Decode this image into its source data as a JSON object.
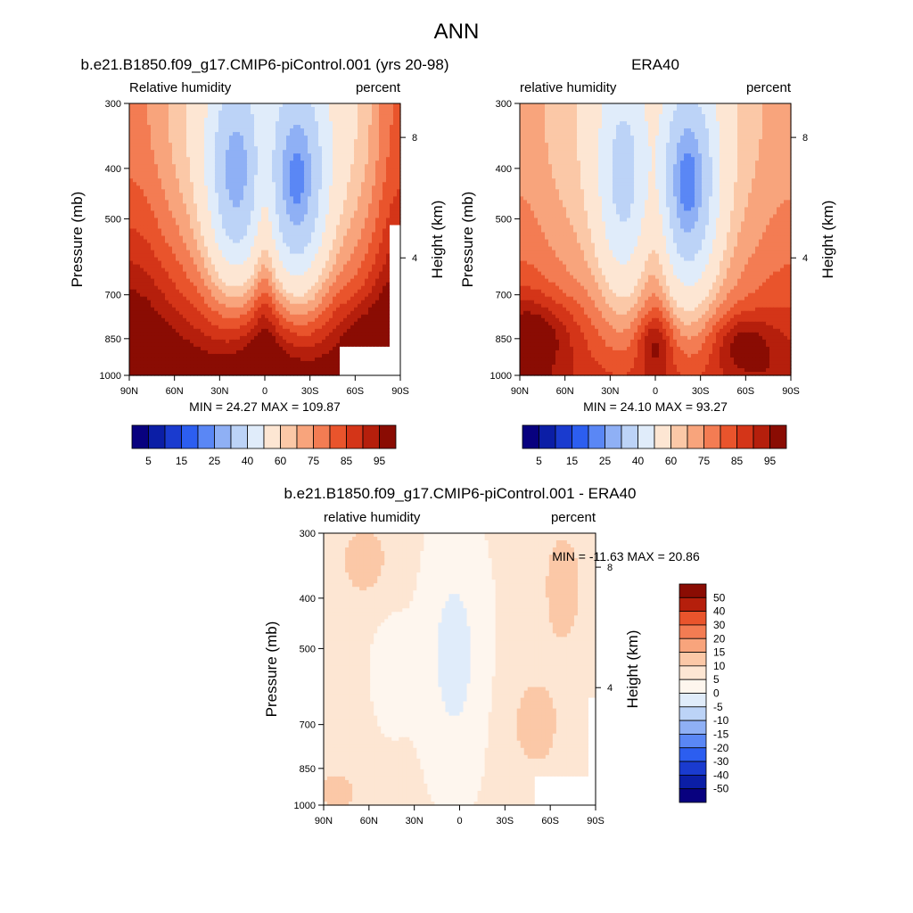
{
  "figure_title": "ANN",
  "chart_data": [
    {
      "type": "heatmap",
      "title": "b.e21.B1850.f09_g17.CMIP6-piControl.001 (yrs 20-98)",
      "left_string": "Relative humidity",
      "right_string": "percent",
      "ylabel": "Pressure (mb)",
      "ylabel_right": "Height (km)",
      "x_ticks": [
        "90N",
        "60N",
        "30N",
        "0",
        "30S",
        "60S",
        "90S"
      ],
      "y_ticks": [
        "300",
        "400",
        "500",
        "700",
        "850",
        "1000"
      ],
      "y2_ticks": [
        "8",
        "4"
      ],
      "ylim": [
        1000,
        300
      ],
      "y_scale": "log",
      "xlim": [
        90,
        -90
      ],
      "stats": "MIN =  24.27  MAX = 109.87",
      "colorbar": {
        "orientation": "horizontal",
        "labels": [
          "5",
          "15",
          "25",
          "40",
          "60",
          "75",
          "85",
          "95"
        ],
        "colors": [
          "#08017f",
          "#0b1ea6",
          "#1a3bcf",
          "#2c5ef0",
          "#5a87f5",
          "#8fb0f5",
          "#bcd3f7",
          "#e0ecfa",
          "#fde6d3",
          "#fbc8a7",
          "#f8a47c",
          "#f37c53",
          "#e9542c",
          "#d43518",
          "#b51f0c",
          "#8a0c03"
        ]
      },
      "contour_levels": [
        5,
        10,
        15,
        20,
        25,
        30,
        40,
        50,
        60,
        65,
        70,
        75,
        80,
        85,
        90,
        95
      ],
      "fill_colors": [
        "#08017f",
        "#0b1ea6",
        "#1a3bcf",
        "#2c5ef0",
        "#5a87f5",
        "#8fb0f5",
        "#bcd3f7",
        "#e0ecfa",
        "#fde6d3",
        "#fbc8a7",
        "#f8a47c",
        "#f37c53",
        "#e9542c",
        "#d43518",
        "#b51f0c",
        "#8a0c03"
      ]
    },
    {
      "type": "heatmap",
      "title": "ERA40",
      "left_string": "relative humidity",
      "right_string": "percent",
      "ylabel": "Pressure (mb)",
      "ylabel_right": "Height (km)",
      "x_ticks": [
        "90N",
        "60N",
        "30N",
        "0",
        "30S",
        "60S",
        "90S"
      ],
      "y_ticks": [
        "300",
        "400",
        "500",
        "700",
        "850",
        "1000"
      ],
      "y2_ticks": [
        "8",
        "4"
      ],
      "ylim": [
        1000,
        300
      ],
      "y_scale": "log",
      "xlim": [
        90,
        -90
      ],
      "stats": "MIN =  24.10  MAX =  93.27",
      "colorbar": {
        "orientation": "horizontal",
        "labels": [
          "5",
          "15",
          "25",
          "40",
          "60",
          "75",
          "85",
          "95"
        ],
        "colors": [
          "#08017f",
          "#0b1ea6",
          "#1a3bcf",
          "#2c5ef0",
          "#5a87f5",
          "#8fb0f5",
          "#bcd3f7",
          "#e0ecfa",
          "#fde6d3",
          "#fbc8a7",
          "#f8a47c",
          "#f37c53",
          "#e9542c",
          "#d43518",
          "#b51f0c",
          "#8a0c03"
        ]
      },
      "contour_levels": [
        5,
        10,
        15,
        20,
        25,
        30,
        40,
        50,
        60,
        65,
        70,
        75,
        80,
        85,
        90,
        95
      ],
      "fill_colors": [
        "#08017f",
        "#0b1ea6",
        "#1a3bcf",
        "#2c5ef0",
        "#5a87f5",
        "#8fb0f5",
        "#bcd3f7",
        "#e0ecfa",
        "#fde6d3",
        "#fbc8a7",
        "#f8a47c",
        "#f37c53",
        "#e9542c",
        "#d43518",
        "#b51f0c",
        "#8a0c03"
      ]
    },
    {
      "type": "heatmap",
      "title": "b.e21.B1850.f09_g17.CMIP6-piControl.001 - ERA40",
      "left_string": "relative humidity",
      "right_string": "percent",
      "ylabel": "Pressure (mb)",
      "ylabel_right": "Height (km)",
      "x_ticks": [
        "90N",
        "60N",
        "30N",
        "0",
        "30S",
        "60S",
        "90S"
      ],
      "y_ticks": [
        "300",
        "400",
        "500",
        "700",
        "850",
        "1000"
      ],
      "y2_ticks": [
        "8",
        "4"
      ],
      "ylim": [
        1000,
        300
      ],
      "y_scale": "log",
      "xlim": [
        90,
        -90
      ],
      "stats": "MIN = -11.63  MAX =  20.86",
      "colorbar": {
        "orientation": "vertical",
        "labels": [
          "50",
          "40",
          "30",
          "20",
          "15",
          "10",
          "5",
          "0",
          "-5",
          "-10",
          "-15",
          "-20",
          "-30",
          "-40",
          "-50"
        ],
        "colors": [
          "#8a0c03",
          "#b51f0c",
          "#e9542c",
          "#f37c53",
          "#f8a47c",
          "#fbc8a7",
          "#fde6d3",
          "#fef6ee",
          "#e0ecfa",
          "#bcd3f7",
          "#8fb0f5",
          "#5a87f5",
          "#2c5ef0",
          "#1a3bcf",
          "#0b1ea6",
          "#08017f"
        ]
      },
      "contour_levels": [
        -50,
        -40,
        -30,
        -20,
        -15,
        -10,
        -5,
        0,
        5,
        10,
        15,
        20,
        30,
        40,
        50
      ],
      "fill_colors": [
        "#08017f",
        "#0b1ea6",
        "#1a3bcf",
        "#2c5ef0",
        "#5a87f5",
        "#8fb0f5",
        "#bcd3f7",
        "#e0ecfa",
        "#fef6ee",
        "#fde6d3",
        "#fbc8a7",
        "#f8a47c",
        "#f37c53",
        "#e9542c",
        "#b51f0c",
        "#8a0c03"
      ]
    }
  ]
}
